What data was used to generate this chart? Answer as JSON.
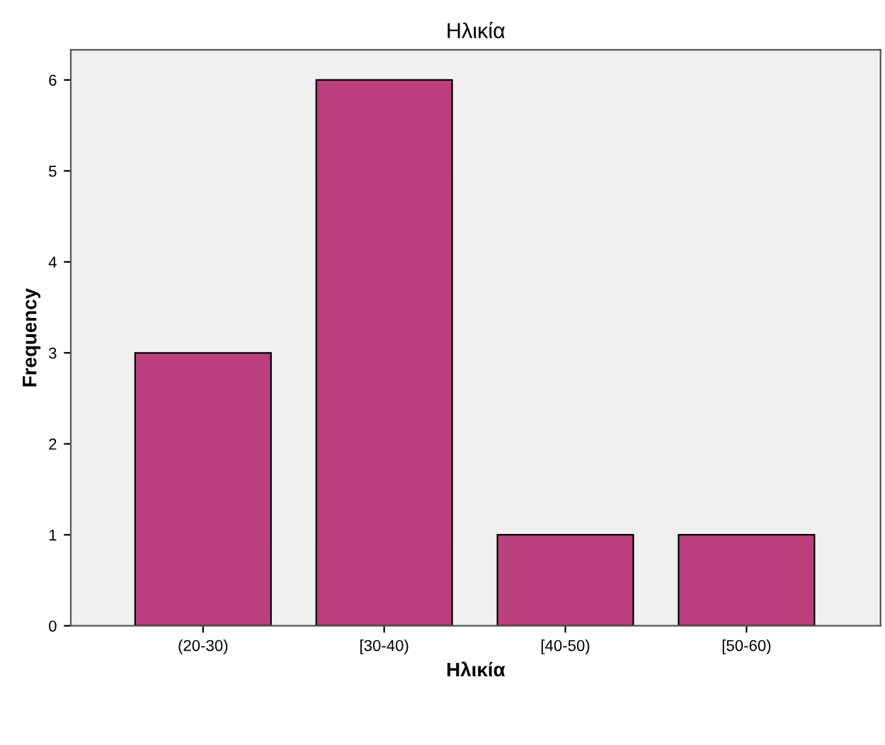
{
  "chart_data": {
    "type": "bar",
    "title": "Ηλικία",
    "xlabel": "Ηλικία",
    "ylabel": "Frequency",
    "categories": [
      "(20-30)",
      "[30-40)",
      "[40-50)",
      "[50-60)"
    ],
    "values": [
      3,
      6,
      1,
      1
    ],
    "color": "#bb3f7d",
    "ylim": [
      0,
      6.33
    ],
    "yticks": [
      0,
      1,
      2,
      3,
      4,
      5,
      6
    ],
    "grid": false,
    "legend": false
  }
}
